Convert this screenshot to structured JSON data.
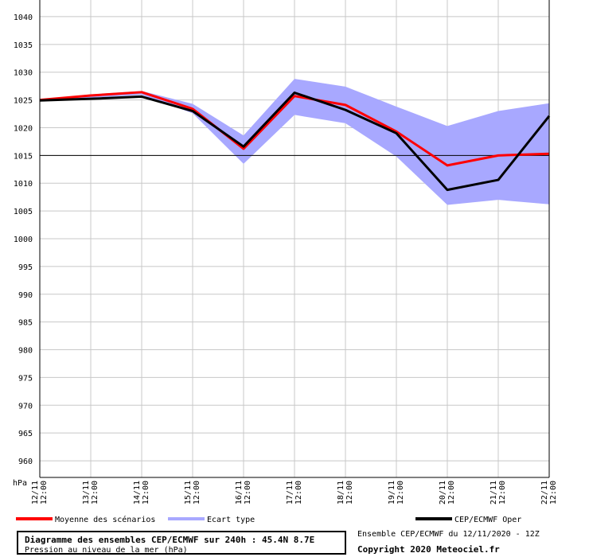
{
  "chart_data": {
    "type": "line",
    "unit_label": "hPa",
    "ylim": [
      957,
      1043
    ],
    "yticks": [
      960,
      965,
      970,
      975,
      980,
      985,
      990,
      995,
      1000,
      1005,
      1010,
      1015,
      1020,
      1025,
      1030,
      1035,
      1040
    ],
    "reference_line": 1015,
    "x_days": [
      "12/11",
      "13/11",
      "14/11",
      "15/11",
      "16/11",
      "17/11",
      "18/11",
      "19/11",
      "20/11",
      "21/11",
      "22/11"
    ],
    "x_time": "12:00",
    "grid": true,
    "series": [
      {
        "name": "Moyenne des scénarios",
        "color": "#ff0000",
        "values": [
          1025.0,
          1025.8,
          1026.4,
          1023.4,
          1016.2,
          1025.7,
          1024.1,
          1019.3,
          1013.2,
          1015.0,
          1015.3
        ]
      },
      {
        "name": "CEP/ECMWF Oper",
        "color": "#000000",
        "values": [
          1024.9,
          1025.2,
          1025.6,
          1023.0,
          1016.6,
          1026.3,
          1023.2,
          1019.0,
          1008.8,
          1010.6,
          1022.1
        ]
      }
    ],
    "band": {
      "name": "Ecart type",
      "color": "#a8a8ff",
      "upper": [
        1025.1,
        1026.0,
        1026.6,
        1024.3,
        1018.6,
        1028.8,
        1027.4,
        1023.8,
        1020.3,
        1023.0,
        1024.4
      ],
      "lower": [
        1024.9,
        1025.4,
        1025.9,
        1022.6,
        1013.5,
        1022.3,
        1020.8,
        1014.8,
        1006.1,
        1007.0,
        1006.2
      ]
    }
  },
  "legend": {
    "mean_label": "Moyenne des scénarios",
    "band_label": "Ecart type",
    "oper_label": "CEP/ECMWF Oper"
  },
  "info": {
    "title": "Diagramme des ensembles CEP/ECMWF sur 240h : 45.4N 8.7E",
    "subtitle": "Pression au niveau de la mer (hPa)",
    "ensemble": "Ensemble CEP/ECMWF du 12/11/2020 - 12Z",
    "copyright": "Copyright 2020 Meteociel.fr"
  }
}
